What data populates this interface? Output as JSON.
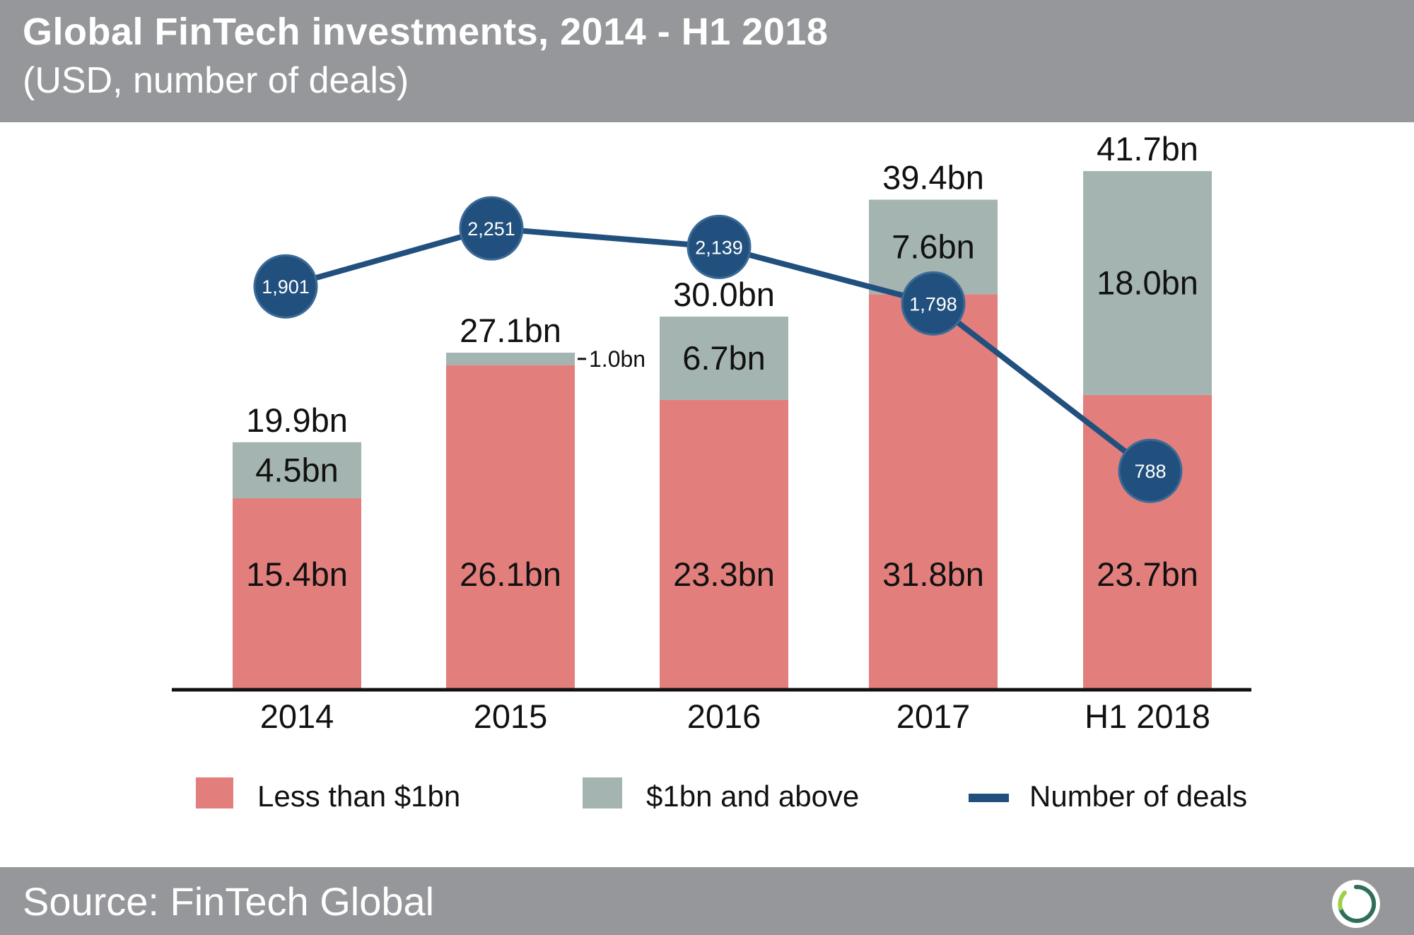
{
  "header": {
    "title": "Global FinTech investments, 2014 - H1 2018",
    "subtitle": "(USD, number of deals)"
  },
  "footer": {
    "source": "Source: FinTech Global",
    "logo_icon": "circle-swirl-logo-icon"
  },
  "colors": {
    "less_than_1bn": "#e27f7c",
    "1bn_and_above": "#a4b4b0",
    "number_of_deals": "#22507e",
    "header_bg": "#96979a"
  },
  "chart_data": {
    "type": "bar",
    "stacked": true,
    "title": "Global FinTech investments, 2014 - H1 2018",
    "subtitle": "(USD, number of deals)",
    "categories": [
      "2014",
      "2015",
      "2016",
      "2017",
      "H1 2018"
    ],
    "series": [
      {
        "name": "Less than $1bn",
        "values": [
          15.4,
          26.1,
          23.3,
          31.8,
          23.7
        ],
        "labels": [
          "15.4bn",
          "26.1bn",
          "23.3bn",
          "31.8bn",
          "23.7bn"
        ]
      },
      {
        "name": "$1bn and above",
        "values": [
          4.5,
          1.0,
          6.7,
          7.6,
          18.0
        ],
        "labels": [
          "4.5bn",
          "1.0bn",
          "6.7bn",
          "7.6bn",
          "18.0bn"
        ]
      }
    ],
    "totals": {
      "values": [
        19.9,
        27.1,
        30.0,
        39.4,
        41.7
      ],
      "labels": [
        "19.9bn",
        "27.1bn",
        "30.0bn",
        "39.4bn",
        "41.7bn"
      ]
    },
    "line_series": {
      "name": "Number of deals",
      "type": "line",
      "values": [
        1901,
        2251,
        2139,
        1798,
        788
      ],
      "labels": [
        "1,901",
        "2,251",
        "2,139",
        "1,798",
        "788"
      ]
    },
    "ylim": [
      0,
      50
    ],
    "deals_ylim": [
      0,
      2600
    ],
    "xlabel": "",
    "ylabel": "",
    "grid": false,
    "legend": {
      "position": "bottom",
      "items": [
        "Less than $1bn",
        "$1bn and above",
        "Number of deals"
      ]
    }
  }
}
